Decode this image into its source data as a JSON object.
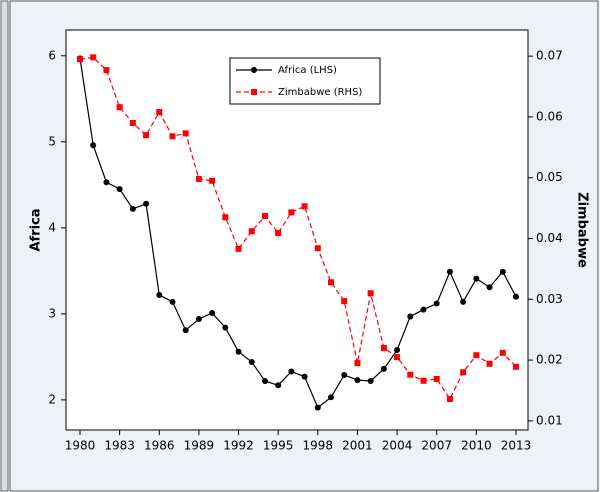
{
  "chart_data": {
    "type": "line",
    "x": [
      1980,
      1981,
      1982,
      1983,
      1984,
      1985,
      1986,
      1987,
      1988,
      1989,
      1990,
      1991,
      1992,
      1993,
      1994,
      1995,
      1996,
      1997,
      1998,
      1999,
      2000,
      2001,
      2002,
      2003,
      2004,
      2005,
      2006,
      2007,
      2008,
      2009,
      2010,
      2011,
      2012,
      2013
    ],
    "series": [
      {
        "name": "Africa (LHS)",
        "color": "#000000",
        "marker": "circle",
        "dash": "solid",
        "values": [
          5.97,
          4.96,
          4.53,
          4.45,
          4.22,
          4.28,
          3.22,
          3.14,
          2.81,
          2.94,
          3.01,
          2.84,
          2.56,
          2.44,
          2.22,
          2.17,
          2.33,
          2.27,
          1.91,
          2.03,
          2.29,
          2.23,
          2.22,
          2.36,
          2.58,
          2.97,
          3.05,
          3.12,
          3.49,
          3.14,
          3.41,
          3.31,
          3.49,
          3.2
        ]
      },
      {
        "name": "Zimbabwe (RHS)",
        "color": "#ff0000",
        "marker": "square",
        "dash": "dashed",
        "axis": "y2",
        "values": [
          0.0695,
          0.0698,
          0.0677,
          0.0616,
          0.059,
          0.057,
          0.0608,
          0.0568,
          0.0573,
          0.0498,
          0.0495,
          0.0435,
          0.0383,
          0.0412,
          0.0437,
          0.0409,
          0.0443,
          0.0453,
          0.0384,
          0.0328,
          0.0297,
          0.0195,
          0.031,
          0.022,
          0.0205,
          0.0176,
          0.0166,
          0.0169,
          0.0136,
          0.018,
          0.0208,
          0.0194,
          0.0212,
          0.0189
        ]
      }
    ],
    "y_label": "Africa",
    "y2_label": "Zimbabwe",
    "xlim": [
      1978.94,
      2013.91
    ],
    "xticks": [
      1980,
      1983,
      1986,
      1989,
      1992,
      1995,
      1998,
      2001,
      2004,
      2007,
      2010,
      2013
    ],
    "ylim": [
      1.65,
      6.3
    ],
    "yticks": [
      2,
      3,
      4,
      5,
      6
    ],
    "y2lim": [
      0.0085,
      0.0743
    ],
    "y2ticks": [
      0.01,
      0.02,
      0.03,
      0.04,
      0.05,
      0.06,
      0.07
    ],
    "legend": "upper-center"
  }
}
